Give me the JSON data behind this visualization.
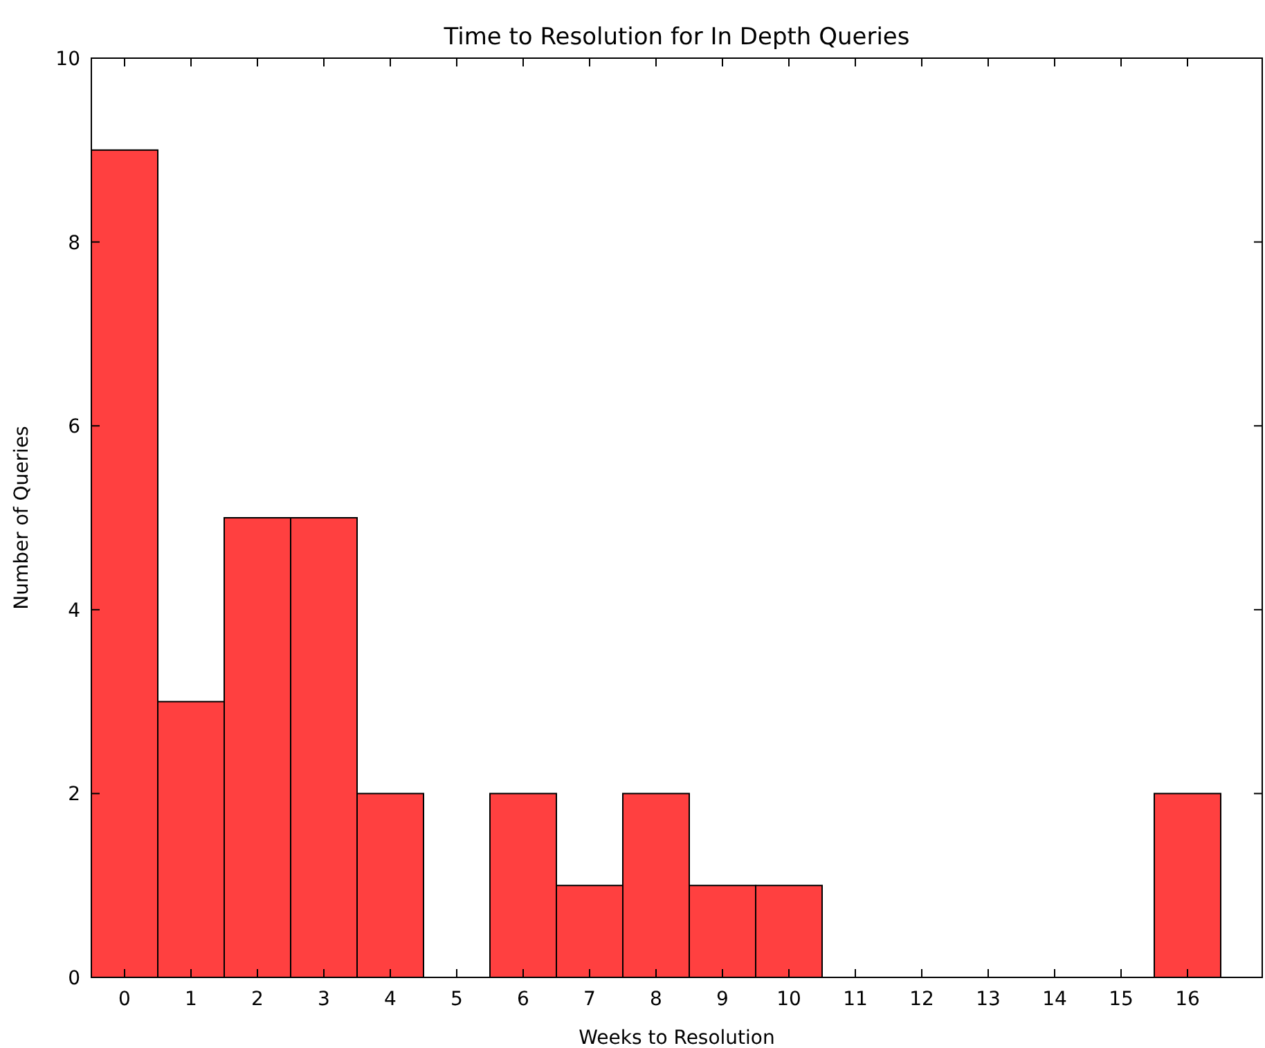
{
  "chart_data": {
    "type": "histogram",
    "title": "Time to Resolution for In Depth Queries",
    "xlabel": "Weeks to Resolution",
    "ylabel": "Number of Queries",
    "bins": [
      -0.5,
      0.5,
      1.5,
      2.5,
      3.5,
      4.5,
      5.5,
      6.5,
      7.5,
      8.5,
      9.5,
      10.5,
      11.5,
      12.5,
      13.5,
      14.5,
      15.5,
      16.5
    ],
    "values": [
      9,
      3,
      5,
      5,
      2,
      0,
      2,
      1,
      2,
      1,
      1,
      0,
      0,
      0,
      0,
      0,
      2
    ],
    "color": "#ff4040",
    "xlim": [
      -0.5,
      17.125
    ],
    "xticks": [
      0,
      1,
      2,
      3,
      4,
      5,
      6,
      7,
      8,
      9,
      10,
      11,
      12,
      13,
      14,
      15,
      16
    ],
    "ylim": [
      0,
      10
    ],
    "yticks": [
      0,
      2,
      4,
      6,
      8,
      10
    ],
    "grid": false
  }
}
